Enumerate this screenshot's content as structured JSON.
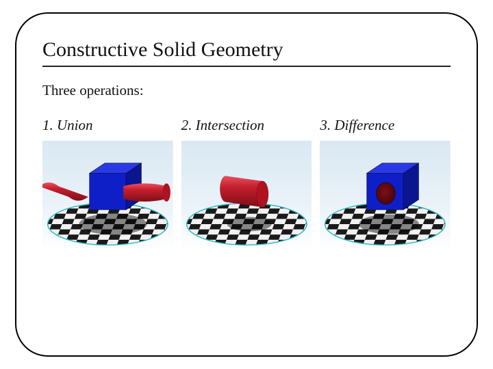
{
  "title": "Constructive Solid Geometry",
  "subtitle": "Three operations:",
  "operations": [
    {
      "label": "1. Union"
    },
    {
      "label": "2. Intersection"
    },
    {
      "label": "3. Difference"
    }
  ],
  "style": {
    "title_fontsize": 30,
    "subtitle_fontsize": 21,
    "label_fontsize": 21,
    "label_fontstyle": "italic",
    "frame_border_color": "#000000",
    "frame_border_radius": 48,
    "rule_color": "#222222"
  },
  "scene": {
    "background_gradient": {
      "top": "#d9e8f2",
      "mid": "#e9f2f8",
      "bottom": "#ffffff"
    },
    "floor": {
      "ellipse_border": "#2fb9c9",
      "tile_light": "#f2f2f2",
      "tile_dark": "#1a1a1a",
      "shadow_color": "#000000",
      "shadow_opacity": 0.45
    },
    "cube": {
      "top_color": "#2a39e5",
      "front_color": "#0f1fc8",
      "side_color": "#0a1590",
      "edge_color": "#04082f"
    },
    "cylinder": {
      "body_color": "#c51f2d",
      "highlight_color": "#e9525e",
      "dark_color": "#7e0f19",
      "cap_color": "#b01320"
    }
  }
}
